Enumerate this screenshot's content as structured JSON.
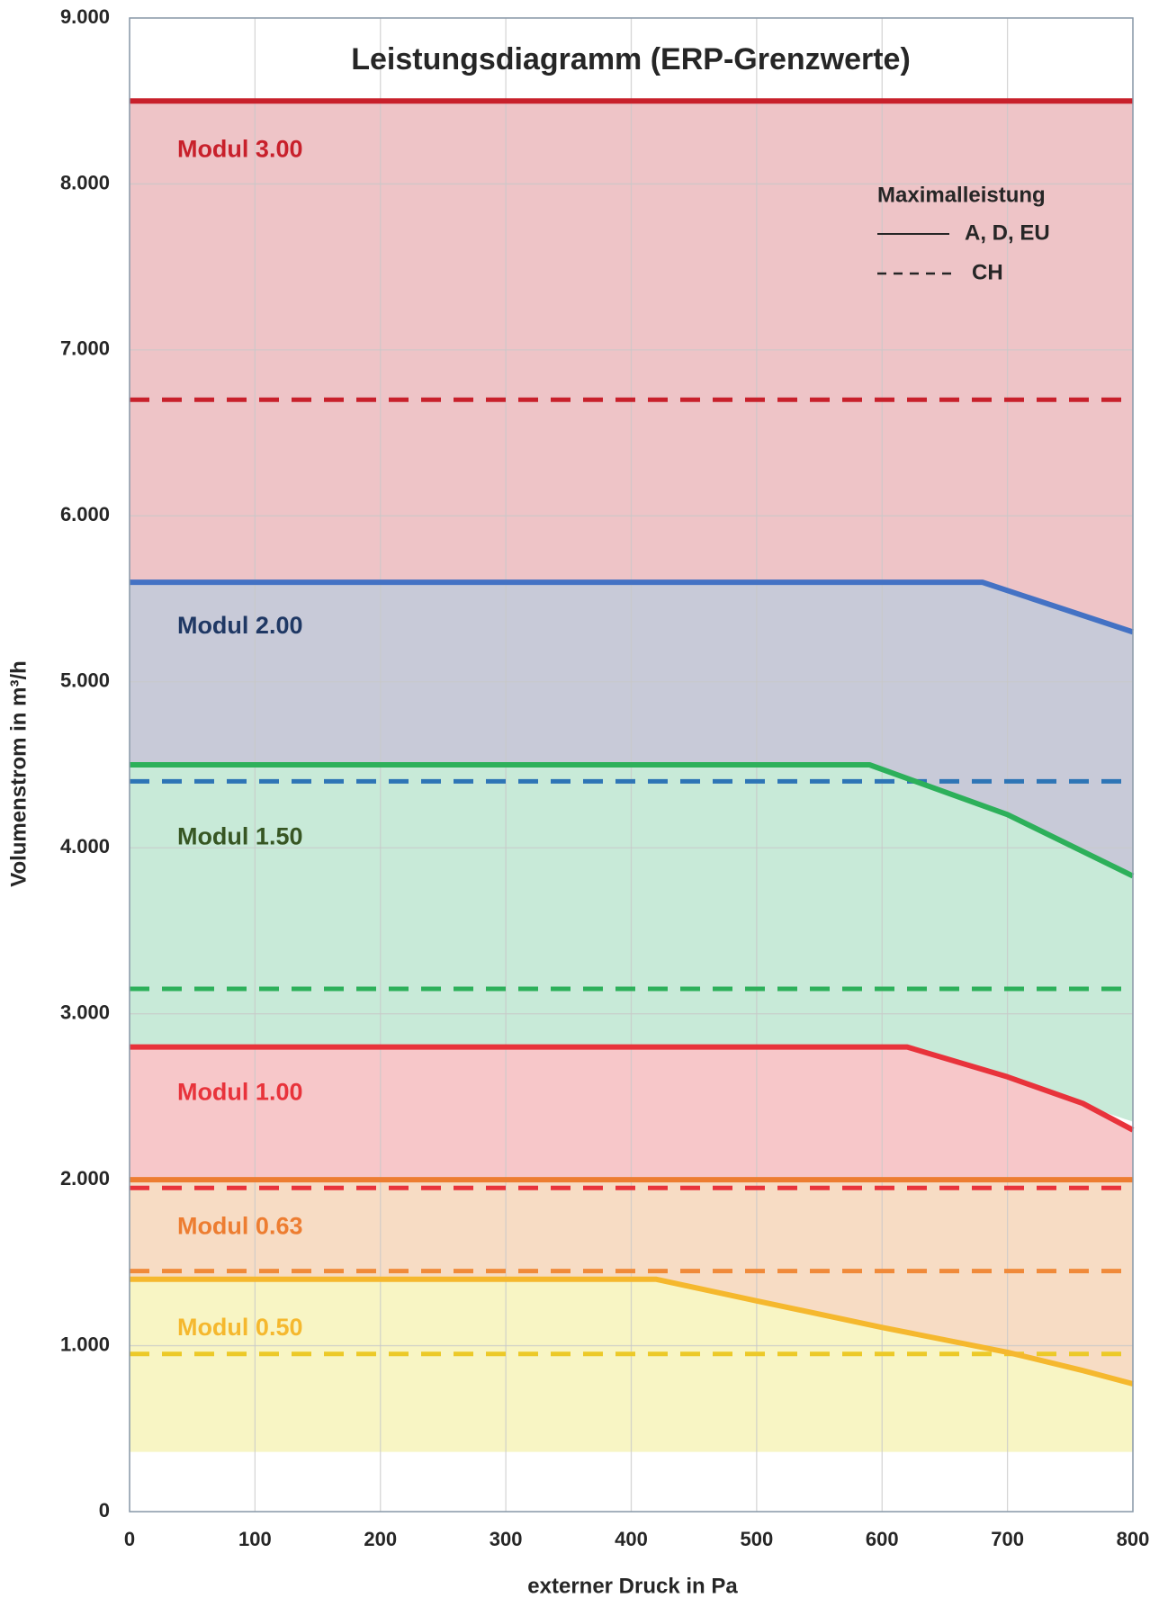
{
  "chart_data": {
    "type": "area",
    "title": "Leistungsdiagramm (ERP-Grenzwerte)",
    "xlabel": "externer Druck in Pa",
    "ylabel": "Volumenstrom in m³/h",
    "xlim": [
      0,
      800
    ],
    "ylim": [
      0,
      9000
    ],
    "xticks": [
      0,
      100,
      200,
      300,
      400,
      500,
      600,
      700,
      800
    ],
    "xtick_labels": [
      "0",
      "100",
      "200",
      "300",
      "400",
      "500",
      "600",
      "700",
      "800"
    ],
    "yticks": [
      0,
      1000,
      2000,
      3000,
      4000,
      5000,
      6000,
      7000,
      8000,
      9000
    ],
    "ytick_labels": [
      "0",
      "1.000",
      "2.000",
      "3.000",
      "4.000",
      "5.000",
      "6.000",
      "7.000",
      "8.000",
      "9.000"
    ],
    "grid": true,
    "legend": {
      "title": "Maximalleistung",
      "position": "top-right",
      "entries": [
        {
          "label": "A, D, EU",
          "style": "solid"
        },
        {
          "label": "CH",
          "style": "dashed"
        }
      ]
    },
    "series": [
      {
        "name": "Modul 3.00",
        "color": "#c8202b",
        "fill": "#eec4c7",
        "floor": [
          [
            0,
            5600
          ],
          [
            680,
            5600
          ],
          [
            800,
            5300
          ]
        ],
        "max_eu": [
          [
            0,
            8500
          ],
          [
            800,
            8500
          ]
        ],
        "max_ch": [
          [
            0,
            6700
          ],
          [
            800,
            6700
          ]
        ]
      },
      {
        "name": "Modul 2.00",
        "color": "#4472c4",
        "label_color": "#1f3864",
        "dash_color": "#2e75b6",
        "fill": "#c8cad8",
        "floor": [
          [
            0,
            4500
          ],
          [
            590,
            4500
          ],
          [
            800,
            3850
          ]
        ],
        "max_eu": [
          [
            0,
            5600
          ],
          [
            680,
            5600
          ],
          [
            800,
            5300
          ]
        ],
        "max_ch": [
          [
            0,
            4400
          ],
          [
            800,
            4400
          ]
        ]
      },
      {
        "name": "Modul 1.50",
        "color": "#2db05a",
        "label_color": "#375623",
        "fill": "#c8ead8",
        "floor": [
          [
            0,
            2800
          ],
          [
            620,
            2800
          ],
          [
            700,
            2600
          ],
          [
            760,
            2450
          ],
          [
            800,
            2350
          ]
        ],
        "max_eu": [
          [
            0,
            4500
          ],
          [
            590,
            4500
          ],
          [
            700,
            4200
          ],
          [
            800,
            3830
          ]
        ],
        "max_ch": [
          [
            0,
            3150
          ],
          [
            800,
            3150
          ]
        ]
      },
      {
        "name": "Modul 1.00",
        "color": "#e8333b",
        "label_color": "#e8333b",
        "fill": "#f7c7c9",
        "floor": [
          [
            0,
            2000
          ],
          [
            800,
            2000
          ]
        ],
        "max_eu": [
          [
            0,
            2800
          ],
          [
            620,
            2800
          ],
          [
            700,
            2620
          ],
          [
            760,
            2460
          ],
          [
            800,
            2300
          ]
        ],
        "max_ch": [
          [
            0,
            1950
          ],
          [
            800,
            1950
          ]
        ]
      },
      {
        "name": "Modul 0.63",
        "color": "#ed7d31",
        "label_color": "#ed7d31",
        "dash_color": "#f08a3a",
        "fill": "#f7dcc4",
        "floor": [
          [
            0,
            1400
          ],
          [
            420,
            1400
          ],
          [
            500,
            1270
          ],
          [
            600,
            1110
          ],
          [
            700,
            960
          ],
          [
            760,
            850
          ],
          [
            800,
            780
          ]
        ],
        "max_eu": [
          [
            0,
            2000
          ],
          [
            800,
            2000
          ]
        ],
        "max_ch": [
          [
            0,
            1450
          ],
          [
            800,
            1450
          ]
        ]
      },
      {
        "name": "Modul 0.50",
        "color": "#f5b82e",
        "label_color": "#f5b82e",
        "dash_color": "#ecc928",
        "fill": "#f8f5c4",
        "floor": [
          [
            0,
            360
          ],
          [
            800,
            360
          ]
        ],
        "max_eu": [
          [
            0,
            1400
          ],
          [
            420,
            1400
          ],
          [
            500,
            1270
          ],
          [
            600,
            1110
          ],
          [
            700,
            960
          ],
          [
            760,
            850
          ],
          [
            800,
            770
          ]
        ],
        "max_ch": [
          [
            0,
            950
          ],
          [
            800,
            950
          ]
        ]
      }
    ]
  }
}
